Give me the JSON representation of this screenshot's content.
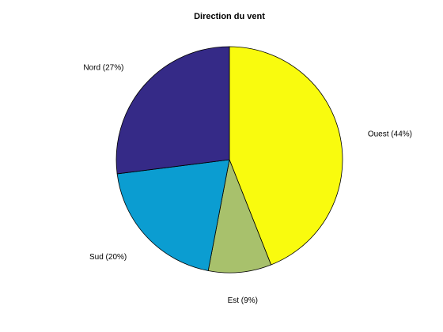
{
  "chart_data": {
    "type": "pie",
    "title": "Direction du vent",
    "slices": [
      {
        "name": "Ouest",
        "value": 44,
        "label": "Ouest (44%)",
        "color": "#f9fb0e"
      },
      {
        "name": "Est",
        "value": 9,
        "label": "Est  (9%)",
        "color": "#a8c16c"
      },
      {
        "name": "Sud",
        "value": 20,
        "label": "Sud (20%)",
        "color": "#0b9dd1"
      },
      {
        "name": "Nord",
        "value": 27,
        "label": "Nord (27%)",
        "color": "#352a87"
      }
    ],
    "start_angle_deg": 90,
    "direction": "clockwise",
    "legend": "none",
    "background": "#ffffff"
  }
}
